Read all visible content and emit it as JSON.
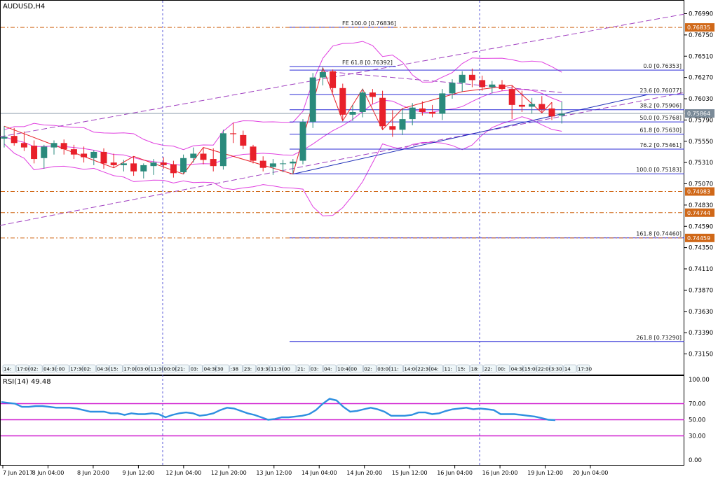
{
  "symbol_label": "AUDUSD,H4",
  "rsi_label": "RSI(14) 49.48",
  "colors": {
    "bull": "#2a8a7c",
    "bear": "#e8202a",
    "fib": "#2b2bd6",
    "trend": "#1f2fb8",
    "channel": "#a040c0",
    "bands": "#e040e0",
    "hline": "#d06818",
    "rsi_line": "#2e8fe0",
    "rsi_level": "#d020d0",
    "sep": "#5a5ad8"
  },
  "chart_data": {
    "type": "candlestick",
    "title": "AUDUSD,H4",
    "ylim": [
      0.73,
      0.7705
    ],
    "y_ticks": [
      "0.76990",
      "0.76750",
      "0.76510",
      "0.76270",
      "0.76030",
      "0.75790",
      "0.75550",
      "0.75310",
      "0.75070",
      "0.74830",
      "0.74590",
      "0.74350",
      "0.74110",
      "0.73870",
      "0.73630",
      "0.73390",
      "0.73150"
    ],
    "current_price": "0.75864",
    "x_labels": [
      "7 Jun 2017",
      "8 Jun 04:00",
      "8 Jun 20:00",
      "9 Jun 12:00",
      "12 Jun 04:00",
      "12 Jun 20:00",
      "13 Jun 12:00",
      "14 Jun 04:00",
      "14 Jun 20:00",
      "15 Jun 12:00",
      "16 Jun 04:00",
      "16 Jun 20:00",
      "19 Jun 12:00",
      "20 Jun 04:00"
    ],
    "time_strip": [
      "14:",
      "17:00",
      "02:",
      "04:30",
      ":00",
      "17:30",
      "02:",
      "04:30",
      "15:",
      "17:00",
      "03:00",
      "11:30",
      "00:00",
      "21:",
      "03:",
      "04:30",
      "30",
      ":38",
      "23:",
      "03:30",
      "11:30",
      "00",
      "21:",
      "03:",
      "04:",
      "10:40",
      "00",
      "02:",
      "03:00",
      "11:",
      "14:00",
      "22:30",
      "04:",
      "11:",
      "15:",
      "18:",
      "22:",
      "00:",
      "04:30",
      "15:00",
      "22:00",
      "3:30",
      "14",
      "17:30"
    ],
    "candles": [
      {
        "o": 0.7558,
        "h": 0.7572,
        "l": 0.7548,
        "c": 0.756
      },
      {
        "o": 0.7561,
        "h": 0.757,
        "l": 0.755,
        "c": 0.7553
      },
      {
        "o": 0.7553,
        "h": 0.7566,
        "l": 0.7544,
        "c": 0.7548
      },
      {
        "o": 0.755,
        "h": 0.7556,
        "l": 0.753,
        "c": 0.7535
      },
      {
        "o": 0.7536,
        "h": 0.7551,
        "l": 0.7524,
        "c": 0.7549
      },
      {
        "o": 0.7548,
        "h": 0.7556,
        "l": 0.754,
        "c": 0.7553
      },
      {
        "o": 0.7553,
        "h": 0.7557,
        "l": 0.754,
        "c": 0.7546
      },
      {
        "o": 0.7546,
        "h": 0.7551,
        "l": 0.7535,
        "c": 0.754
      },
      {
        "o": 0.7541,
        "h": 0.7549,
        "l": 0.7531,
        "c": 0.7537
      },
      {
        "o": 0.7536,
        "h": 0.7545,
        "l": 0.7528,
        "c": 0.7543
      },
      {
        "o": 0.7543,
        "h": 0.7547,
        "l": 0.7524,
        "c": 0.753
      },
      {
        "o": 0.7531,
        "h": 0.7541,
        "l": 0.7525,
        "c": 0.7528
      },
      {
        "o": 0.7528,
        "h": 0.7534,
        "l": 0.7521,
        "c": 0.753
      },
      {
        "o": 0.753,
        "h": 0.7538,
        "l": 0.7516,
        "c": 0.7521
      },
      {
        "o": 0.7521,
        "h": 0.753,
        "l": 0.7513,
        "c": 0.7528
      },
      {
        "o": 0.7527,
        "h": 0.7535,
        "l": 0.7517,
        "c": 0.7531
      },
      {
        "o": 0.7531,
        "h": 0.7537,
        "l": 0.7524,
        "c": 0.7528
      },
      {
        "o": 0.7529,
        "h": 0.7533,
        "l": 0.7514,
        "c": 0.7519
      },
      {
        "o": 0.752,
        "h": 0.754,
        "l": 0.7518,
        "c": 0.7536
      },
      {
        "o": 0.7536,
        "h": 0.7548,
        "l": 0.7531,
        "c": 0.7541
      },
      {
        "o": 0.7541,
        "h": 0.7548,
        "l": 0.7529,
        "c": 0.7534
      },
      {
        "o": 0.7535,
        "h": 0.7547,
        "l": 0.7521,
        "c": 0.7527
      },
      {
        "o": 0.7527,
        "h": 0.7568,
        "l": 0.7523,
        "c": 0.7564
      },
      {
        "o": 0.7564,
        "h": 0.7576,
        "l": 0.7553,
        "c": 0.7563
      },
      {
        "o": 0.7562,
        "h": 0.7567,
        "l": 0.7546,
        "c": 0.755
      },
      {
        "o": 0.7549,
        "h": 0.7551,
        "l": 0.753,
        "c": 0.7533
      },
      {
        "o": 0.7533,
        "h": 0.7538,
        "l": 0.7521,
        "c": 0.7525
      },
      {
        "o": 0.7526,
        "h": 0.7535,
        "l": 0.7517,
        "c": 0.753
      },
      {
        "o": 0.753,
        "h": 0.7534,
        "l": 0.752,
        "c": 0.753
      },
      {
        "o": 0.753,
        "h": 0.7535,
        "l": 0.7518,
        "c": 0.7532
      },
      {
        "o": 0.7533,
        "h": 0.758,
        "l": 0.7529,
        "c": 0.7577
      },
      {
        "o": 0.7577,
        "h": 0.7632,
        "l": 0.757,
        "c": 0.7627
      },
      {
        "o": 0.7627,
        "h": 0.7638,
        "l": 0.7618,
        "c": 0.7633
      },
      {
        "o": 0.7634,
        "h": 0.7636,
        "l": 0.761,
        "c": 0.7615
      },
      {
        "o": 0.7615,
        "h": 0.762,
        "l": 0.7578,
        "c": 0.7585
      },
      {
        "o": 0.7585,
        "h": 0.7596,
        "l": 0.7578,
        "c": 0.7588
      },
      {
        "o": 0.7588,
        "h": 0.7614,
        "l": 0.7582,
        "c": 0.761
      },
      {
        "o": 0.761,
        "h": 0.7614,
        "l": 0.7597,
        "c": 0.7605
      },
      {
        "o": 0.7604,
        "h": 0.7612,
        "l": 0.7568,
        "c": 0.7572
      },
      {
        "o": 0.7572,
        "h": 0.759,
        "l": 0.756,
        "c": 0.7568
      },
      {
        "o": 0.7568,
        "h": 0.7592,
        "l": 0.7562,
        "c": 0.758
      },
      {
        "o": 0.758,
        "h": 0.7598,
        "l": 0.7573,
        "c": 0.7593
      },
      {
        "o": 0.7592,
        "h": 0.76,
        "l": 0.7584,
        "c": 0.7588
      },
      {
        "o": 0.7588,
        "h": 0.7596,
        "l": 0.7582,
        "c": 0.7586
      },
      {
        "o": 0.7586,
        "h": 0.7614,
        "l": 0.7579,
        "c": 0.7609
      },
      {
        "o": 0.7609,
        "h": 0.7625,
        "l": 0.7603,
        "c": 0.7621
      },
      {
        "o": 0.7621,
        "h": 0.7634,
        "l": 0.7611,
        "c": 0.763
      },
      {
        "o": 0.763,
        "h": 0.7637,
        "l": 0.7616,
        "c": 0.7624
      },
      {
        "o": 0.7624,
        "h": 0.7629,
        "l": 0.7612,
        "c": 0.7616
      },
      {
        "o": 0.7616,
        "h": 0.7623,
        "l": 0.7609,
        "c": 0.7619
      },
      {
        "o": 0.7619,
        "h": 0.7624,
        "l": 0.7612,
        "c": 0.7614
      },
      {
        "o": 0.7614,
        "h": 0.7618,
        "l": 0.758,
        "c": 0.7596
      },
      {
        "o": 0.7596,
        "h": 0.7612,
        "l": 0.7588,
        "c": 0.7594
      },
      {
        "o": 0.7594,
        "h": 0.7604,
        "l": 0.7586,
        "c": 0.7597
      },
      {
        "o": 0.7597,
        "h": 0.7606,
        "l": 0.7587,
        "c": 0.7591
      },
      {
        "o": 0.7592,
        "h": 0.7599,
        "l": 0.7579,
        "c": 0.7583
      },
      {
        "o": 0.7584,
        "h": 0.76,
        "l": 0.7575,
        "c": 0.7586
      }
    ],
    "fib_retracement": [
      {
        "label": "0.0 [0.76353]",
        "price": 0.76353
      },
      {
        "label": "23.6 [0.76077]",
        "price": 0.76077
      },
      {
        "label": "38.2 [0.75906]",
        "price": 0.75906
      },
      {
        "label": "50.0 [0.75768]",
        "price": 0.75768
      },
      {
        "label": "61.8 [0.75630]",
        "price": 0.7563
      },
      {
        "label": "76.2 [0.75461]",
        "price": 0.75461
      },
      {
        "label": "100.0 [0.75183]",
        "price": 0.75183
      },
      {
        "label": "161.8 [0.74460]",
        "price": 0.7446
      },
      {
        "label": "261.8 [0.73290]",
        "price": 0.7329
      }
    ],
    "fib_expansion": [
      {
        "label": "FE 100.0 [0.76836]",
        "price": 0.76836
      },
      {
        "label": "FE 61.8 [0.76392]",
        "price": 0.76392
      }
    ],
    "horizontal_levels": [
      {
        "label": "0.76835",
        "price": 0.76835
      },
      {
        "label": "0.74983",
        "price": 0.74983
      },
      {
        "label": "0.74744",
        "price": 0.74744
      },
      {
        "label": "0.74459",
        "price": 0.74459
      }
    ],
    "rsi": {
      "name": "RSI(14)",
      "last": 49.48,
      "ylim": [
        0,
        100
      ],
      "ticks": [
        "100.00",
        "70.00",
        "50.00",
        "30.00",
        "0.00"
      ],
      "levels": [
        70,
        50,
        30
      ],
      "values": [
        72,
        71,
        70,
        66,
        66,
        67,
        67,
        66,
        65,
        65,
        65,
        64,
        62,
        60,
        60,
        60,
        58,
        58,
        56,
        58,
        57,
        57,
        58,
        57,
        53,
        56,
        58,
        59,
        58,
        55,
        56,
        58,
        62,
        65,
        64,
        61,
        58,
        56,
        53,
        50,
        51,
        53,
        53,
        54,
        55,
        57,
        62,
        70,
        76,
        74,
        66,
        60,
        61,
        63,
        65,
        63,
        60,
        55,
        55,
        55,
        56,
        59,
        59,
        57,
        58,
        61,
        63,
        64,
        65,
        63,
        64,
        63,
        62,
        57,
        57,
        57,
        56,
        55,
        54,
        52,
        50,
        49.48
      ]
    }
  }
}
